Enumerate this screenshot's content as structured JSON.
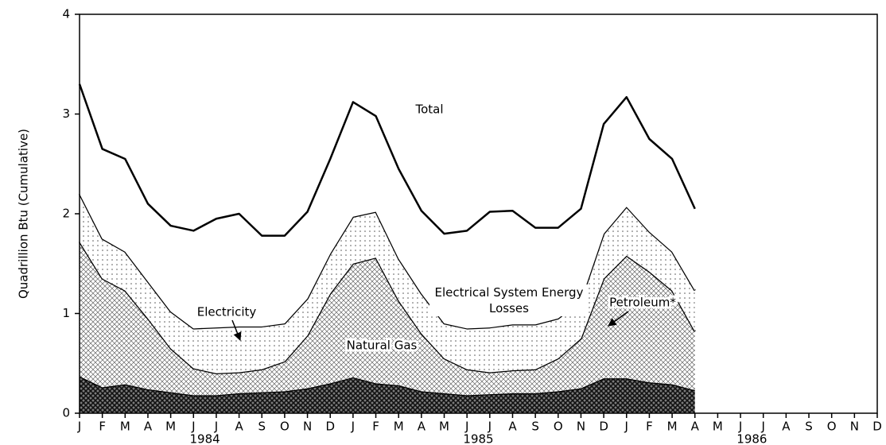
{
  "chart_data": {
    "type": "stacked_area",
    "y_label": "Quadrillion Btu (Cumulative)",
    "total_label": "Total",
    "categories": [
      "J",
      "F",
      "M",
      "A",
      "M",
      "J",
      "J",
      "A",
      "S",
      "O",
      "N",
      "D",
      "J",
      "F",
      "M",
      "A",
      "M",
      "J",
      "J",
      "A",
      "S",
      "O",
      "N",
      "D",
      "J",
      "F",
      "M",
      "A",
      "M",
      "J",
      "J",
      "A",
      "S",
      "O",
      "N",
      "D"
    ],
    "years": [
      "1984",
      "1985",
      "1986"
    ],
    "series": [
      {
        "name": "Petroleum*",
        "color": "#111111",
        "pattern": "crosshatch-dense",
        "values": [
          0.37,
          0.26,
          0.29,
          0.24,
          0.21,
          0.18,
          0.18,
          0.2,
          0.21,
          0.22,
          0.25,
          0.3,
          0.36,
          0.3,
          0.28,
          0.22,
          0.2,
          0.18,
          0.19,
          0.2,
          0.2,
          0.22,
          0.25,
          0.35,
          0.35,
          0.31,
          0.29,
          0.23,
          null,
          null,
          null,
          null,
          null,
          null,
          null,
          null
        ]
      },
      {
        "name": "Natural Gas",
        "color": "#666666",
        "pattern": "crosshatch",
        "values": [
          1.35,
          1.09,
          0.94,
          0.71,
          0.44,
          0.27,
          0.22,
          0.21,
          0.23,
          0.3,
          0.53,
          0.9,
          1.14,
          1.26,
          0.85,
          0.58,
          0.35,
          0.26,
          0.22,
          0.23,
          0.24,
          0.33,
          0.5,
          1.0,
          1.23,
          1.11,
          0.94,
          0.59,
          null,
          null,
          null,
          null,
          null,
          null,
          null,
          null
        ]
      },
      {
        "name": "Electricity",
        "color": "#555555",
        "pattern": "dots",
        "values": [
          0.48,
          0.4,
          0.39,
          0.37,
          0.37,
          0.4,
          0.46,
          0.46,
          0.43,
          0.38,
          0.37,
          0.4,
          0.47,
          0.46,
          0.42,
          0.4,
          0.35,
          0.41,
          0.45,
          0.46,
          0.45,
          0.4,
          0.38,
          0.45,
          0.49,
          0.4,
          0.39,
          0.41,
          null,
          null,
          null,
          null,
          null,
          null,
          null,
          null
        ]
      },
      {
        "name": "Electrical System Energy Losses",
        "color": "#ffffff",
        "pattern": "none",
        "values": [
          1.1,
          0.9,
          0.93,
          0.78,
          0.86,
          0.98,
          1.09,
          1.13,
          0.91,
          0.88,
          0.87,
          0.95,
          1.15,
          0.96,
          0.9,
          0.83,
          0.9,
          0.98,
          1.16,
          1.14,
          0.97,
          0.91,
          0.92,
          1.1,
          1.1,
          0.93,
          0.93,
          0.82,
          null,
          null,
          null,
          null,
          null,
          null,
          null,
          null
        ]
      }
    ],
    "ylim": [
      0,
      4
    ],
    "yticks": [
      0,
      1,
      2,
      3,
      4
    ]
  }
}
